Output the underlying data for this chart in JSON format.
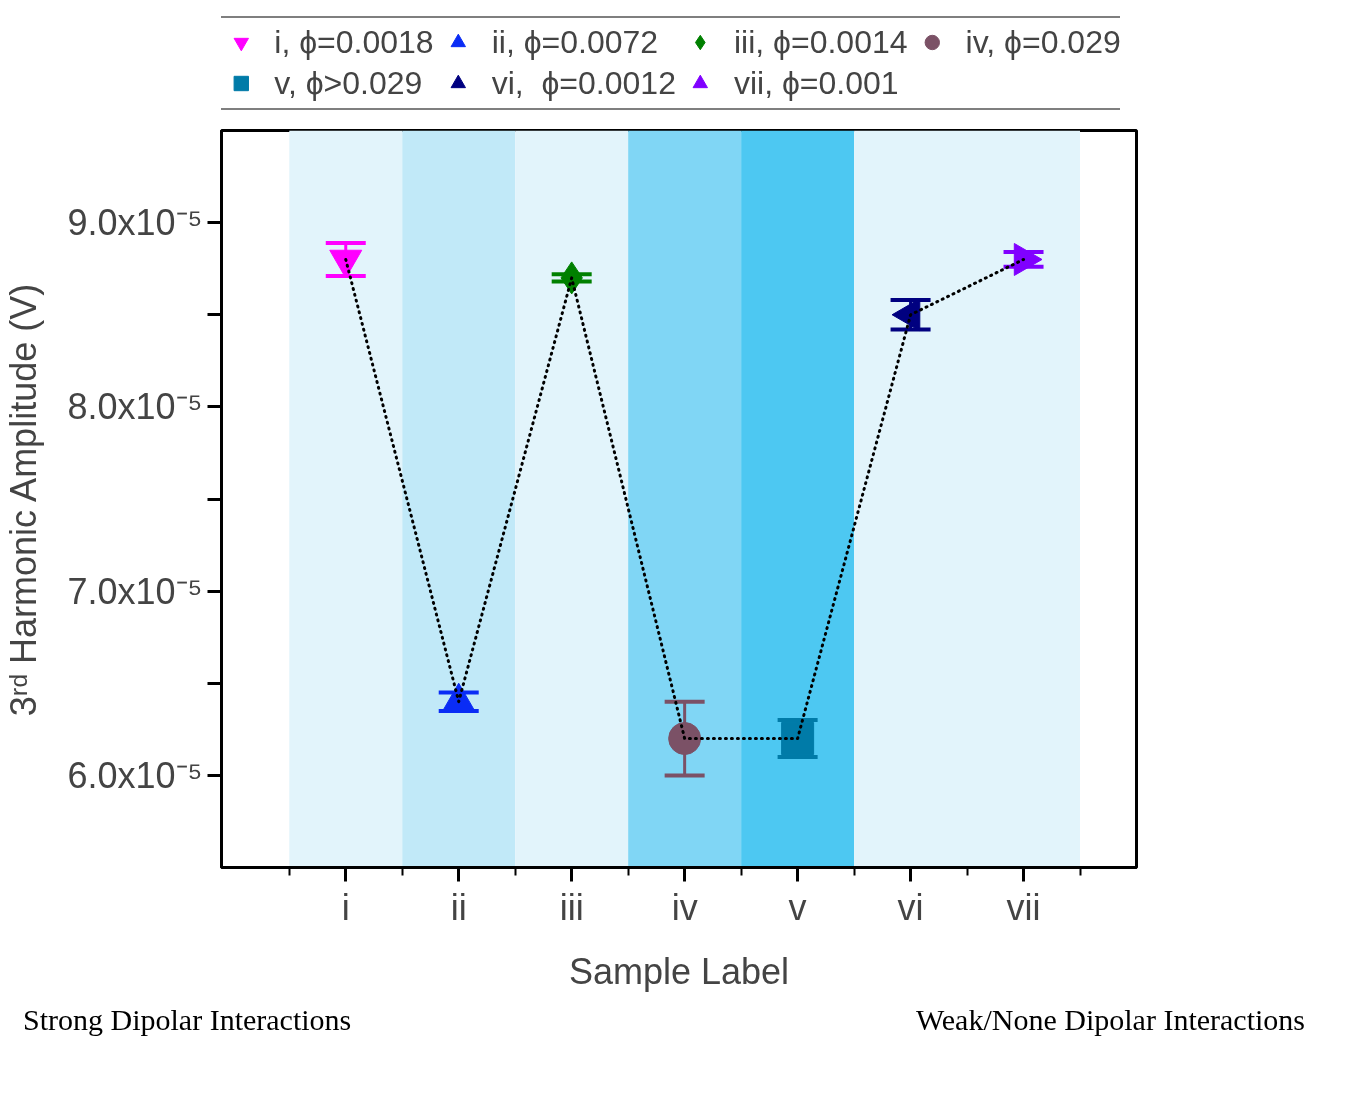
{
  "chart_data": {
    "type": "scatter",
    "xlabel": "Sample Label",
    "ylabel": "3ʳᵈ Harmonic Amplitude (V)",
    "categories": [
      "i",
      "ii",
      "iii",
      "iv",
      "v",
      "vi",
      "vii"
    ],
    "ylim": [
      5.5e-05,
      9.5e-05
    ],
    "yticks": [
      {
        "value": 6e-05,
        "label": "6.0x10⁻⁵"
      },
      {
        "value": 6.5e-05,
        "label": null
      },
      {
        "value": 7e-05,
        "label": "7.0x10⁻⁵"
      },
      {
        "value": 7.5e-05,
        "label": null
      },
      {
        "value": 8e-05,
        "label": "8.0x10⁻⁵"
      },
      {
        "value": 8.5e-05,
        "label": null
      },
      {
        "value": 9e-05,
        "label": "9.0x10⁻⁵"
      }
    ],
    "series": [
      {
        "type": "line",
        "color": "#000000",
        "line_style": "dotted",
        "marker": "none",
        "values": [
          8.8e-05,
          6.4e-05,
          8.7e-05,
          6.2e-05,
          6.2e-05,
          8.5e-05,
          8.8e-05
        ]
      },
      {
        "name": "i, ϕ=0.0018",
        "color": "#ff00ff",
        "marker": "triangle_down",
        "values": [
          8.8e-05,
          null,
          null,
          null,
          null,
          null,
          null
        ],
        "errors": [
          9e-07,
          null,
          null,
          null,
          null,
          null,
          null
        ]
      },
      {
        "name": "ii, ϕ=0.0072",
        "color": "#0a2cf5",
        "marker": "triangle",
        "values": [
          null,
          6.4e-05,
          null,
          null,
          null,
          null,
          null
        ],
        "errors": [
          null,
          5e-07,
          null,
          null,
          null,
          null,
          null
        ]
      },
      {
        "name": "iii, ϕ=0.0014",
        "color": "#008000",
        "marker": "diamond",
        "values": [
          null,
          null,
          8.7e-05,
          null,
          null,
          null,
          null
        ],
        "errors": [
          null,
          null,
          2e-07,
          null,
          null,
          null,
          null
        ]
      },
      {
        "name": "iv, ϕ=0.029",
        "color": "#7b5166",
        "marker": "circle",
        "values": [
          null,
          null,
          null,
          6.2e-05,
          null,
          null,
          null
        ],
        "errors": [
          null,
          null,
          null,
          2e-06,
          null,
          null,
          null
        ]
      },
      {
        "name": "v, ϕ>0.029",
        "color": "#007ba8",
        "marker": "square",
        "values": [
          null,
          null,
          null,
          null,
          6.2e-05,
          null,
          null
        ],
        "errors": [
          null,
          null,
          null,
          null,
          1e-06,
          null,
          null
        ]
      },
      {
        "name": "vi,  ϕ=0.0012",
        "color": "#000080",
        "marker": "triangle_left",
        "values": [
          null,
          null,
          null,
          null,
          null,
          8.5e-05,
          null
        ],
        "errors": [
          null,
          null,
          null,
          null,
          null,
          8e-07,
          null
        ]
      },
      {
        "name": "vii, ϕ=0.001",
        "color": "#8000ff",
        "marker": "triangle_right",
        "values": [
          null,
          null,
          null,
          null,
          null,
          null,
          8.8e-05
        ],
        "errors": [
          null,
          null,
          null,
          null,
          null,
          null,
          4e-07
        ]
      }
    ],
    "bands": [
      {
        "axis": "x",
        "from": "i",
        "to": "i",
        "color": "#e2f4fb"
      },
      {
        "axis": "x",
        "from": "ii",
        "to": "ii",
        "color": "#c1e9f8"
      },
      {
        "axis": "x",
        "from": "iii",
        "to": "iii",
        "color": "#e2f4fb"
      },
      {
        "axis": "x",
        "from": "iv",
        "to": "iv",
        "color": "#80d6f5"
      },
      {
        "axis": "x",
        "from": "v",
        "to": "v",
        "color": "#4dc8f2"
      },
      {
        "axis": "x",
        "from": "vi",
        "to": "vii",
        "color": "#e2f4fb"
      }
    ],
    "annotations": [
      "Strong Dipolar Interactions",
      "Weak/None Dipolar Interactions"
    ],
    "grid": false,
    "legend": "top"
  }
}
